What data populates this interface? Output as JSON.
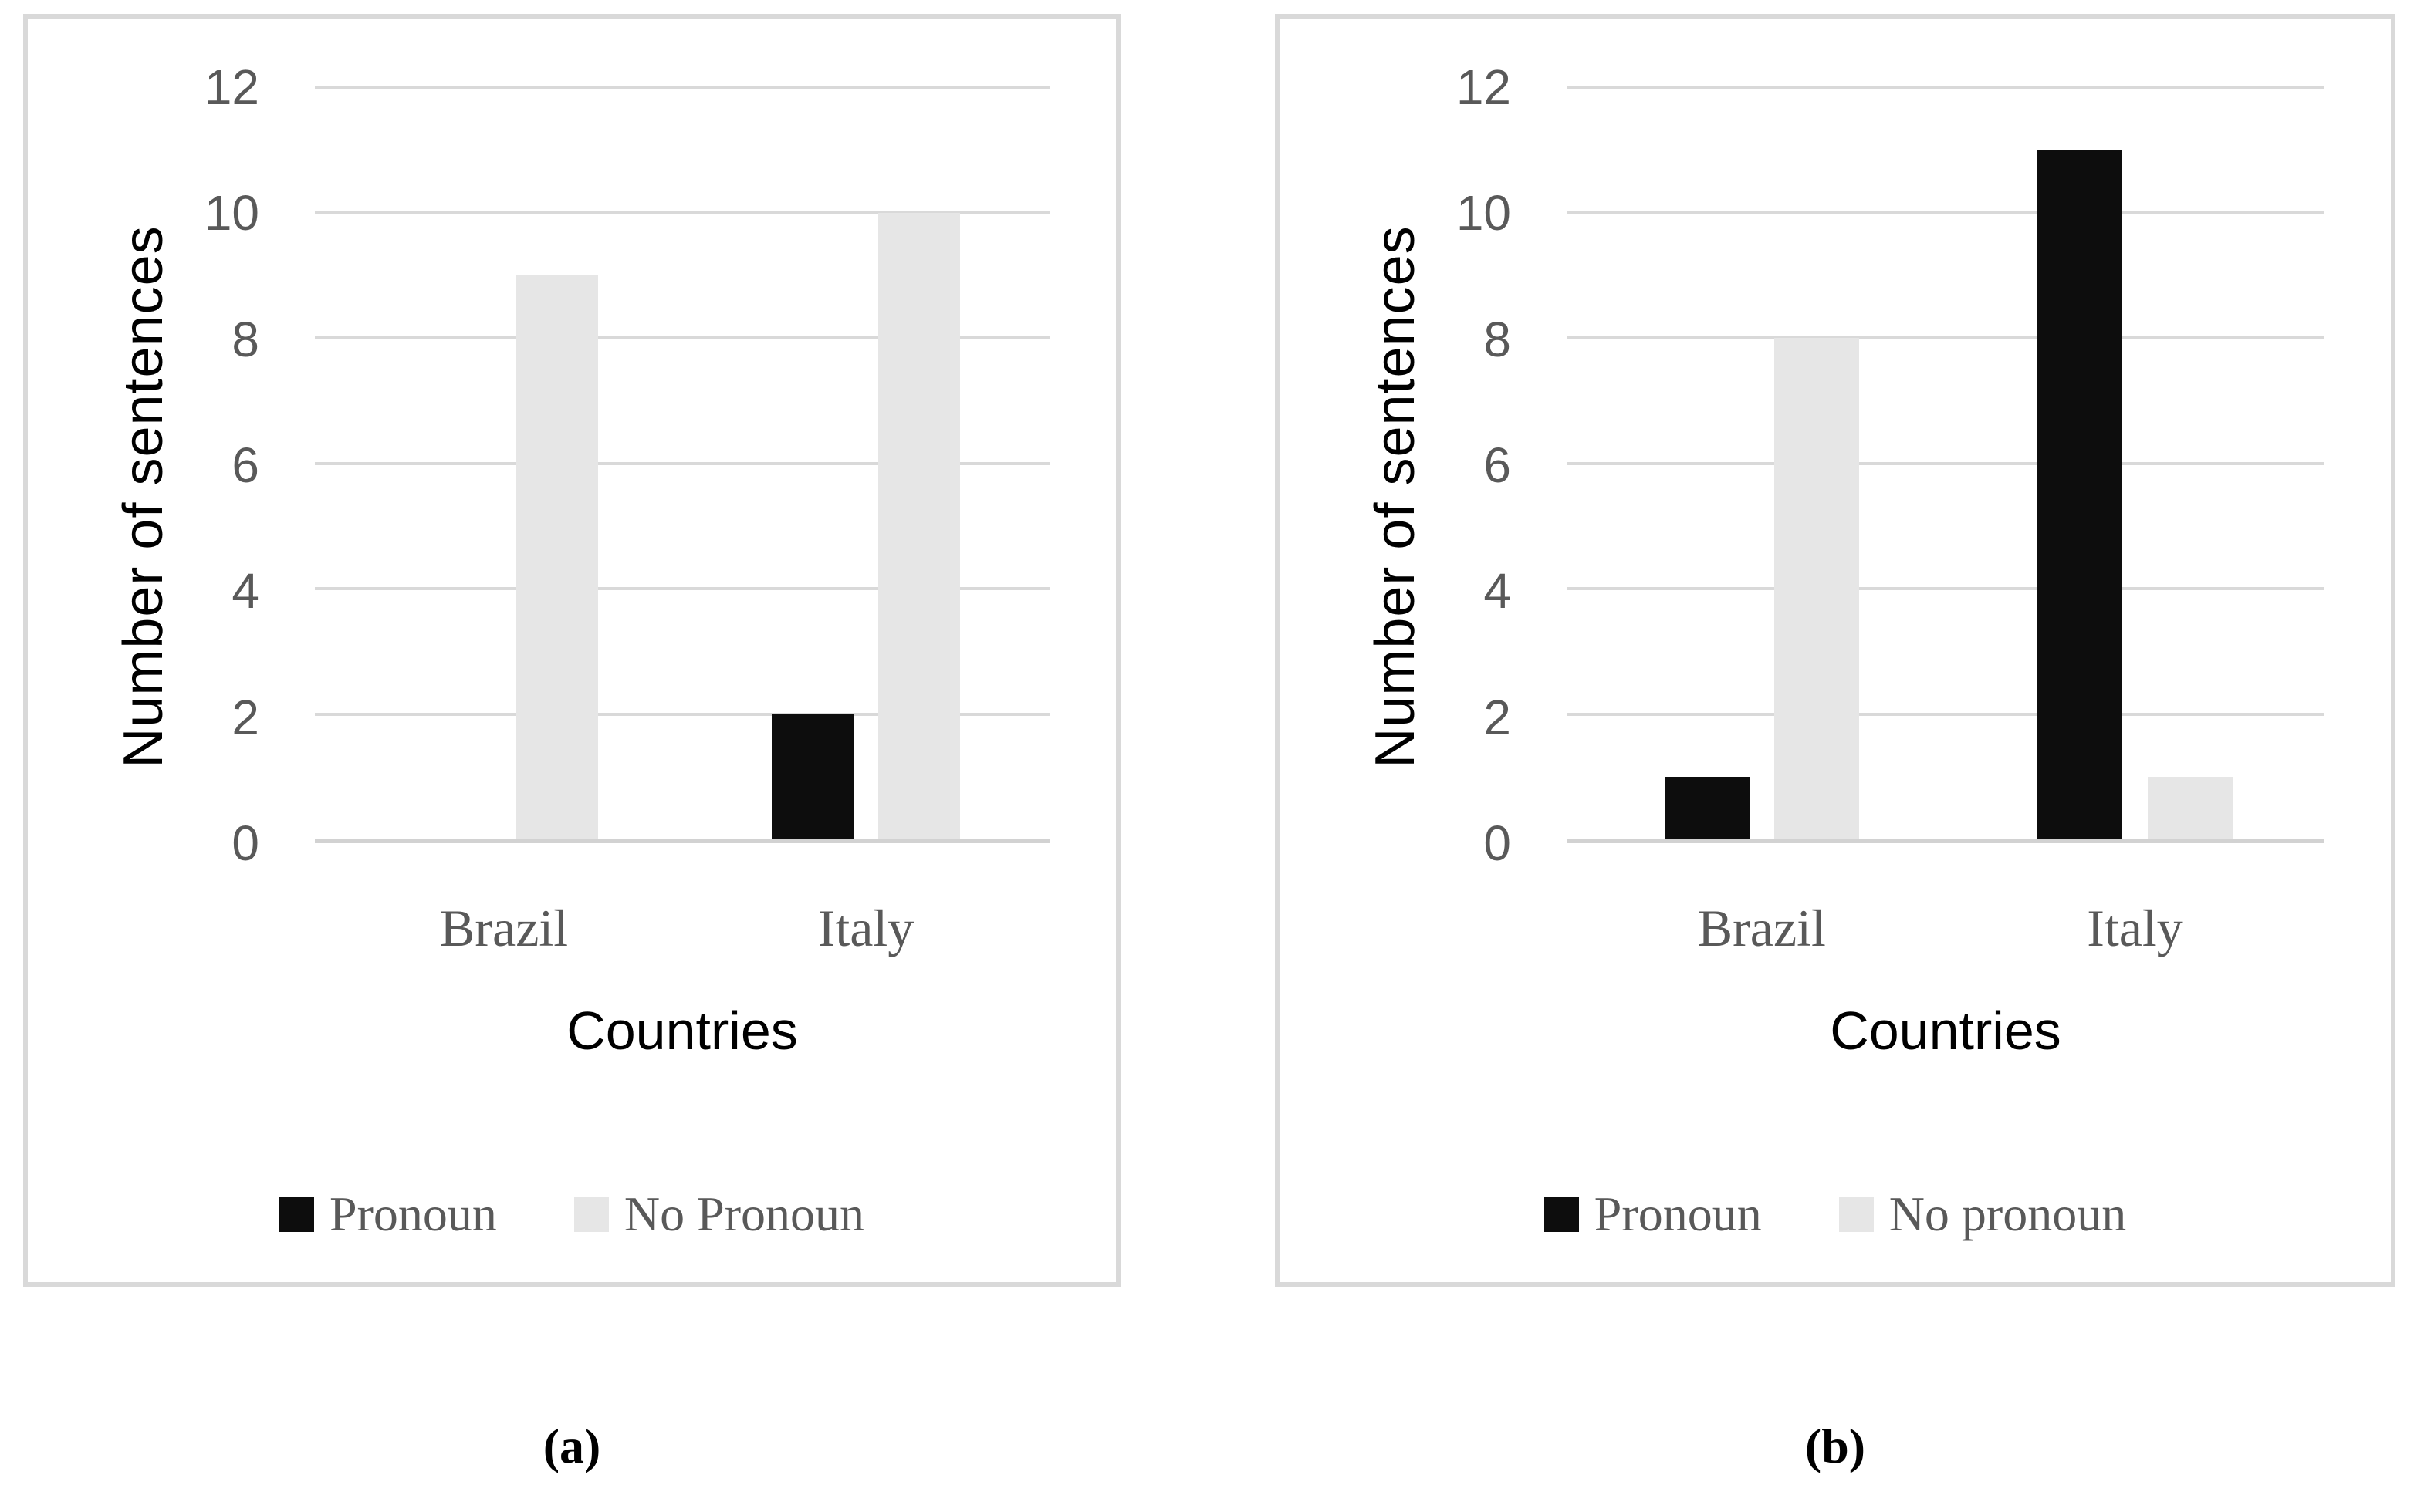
{
  "figure": {
    "caption_a": "(a)",
    "caption_b": "(b)"
  },
  "colors": {
    "bar_pronoun": "#0d0d0d",
    "bar_no_pronoun": "#e6e6e6",
    "gridline": "#d9d9d9",
    "axis_line": "#d2d2d2",
    "panel_border": "#d9d9d9",
    "tick_text": "#595959",
    "category_text": "#595959",
    "legend_text": "#595959",
    "axis_title_text": "#000000"
  },
  "chart_data": [
    {
      "type": "bar",
      "panel_label": "(a)",
      "xlabel": "Countries",
      "ylabel": "Number of sentences",
      "categories": [
        "Brazil",
        "Italy"
      ],
      "series": [
        {
          "name": "Pronoun",
          "color": "#0d0d0d",
          "values": [
            0,
            2
          ]
        },
        {
          "name": "No Pronoun",
          "color": "#e6e6e6",
          "values": [
            9,
            10
          ]
        }
      ],
      "ylim": [
        0,
        12
      ],
      "yticks": [
        0,
        2,
        4,
        6,
        8,
        10,
        12
      ],
      "grid": true,
      "legend_position": "bottom"
    },
    {
      "type": "bar",
      "panel_label": "(b)",
      "xlabel": "Countries",
      "ylabel": "Number of sentences",
      "categories": [
        "Brazil",
        "Italy"
      ],
      "series": [
        {
          "name": "Pronoun",
          "color": "#0d0d0d",
          "values": [
            1,
            11
          ]
        },
        {
          "name": "No pronoun",
          "color": "#e6e6e6",
          "values": [
            8,
            1
          ]
        }
      ],
      "ylim": [
        0,
        12
      ],
      "yticks": [
        0,
        2,
        4,
        6,
        8,
        10,
        12
      ],
      "grid": true,
      "legend_position": "bottom"
    }
  ]
}
